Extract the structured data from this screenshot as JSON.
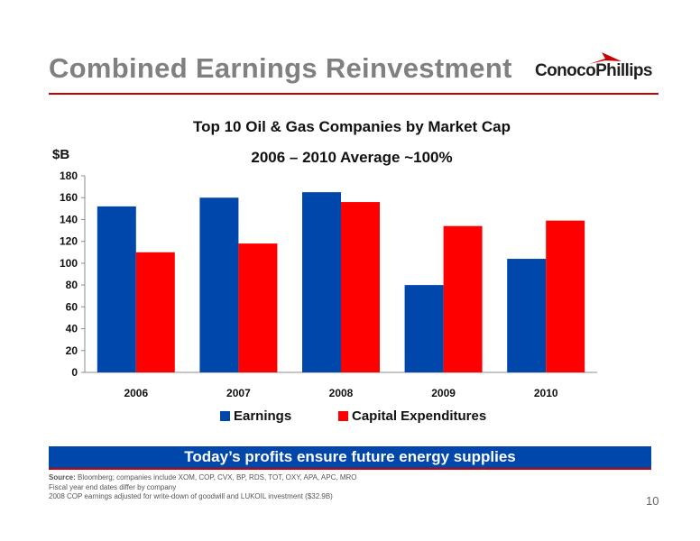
{
  "header": {
    "title": "Combined Earnings Reinvestment",
    "logo_text": "ConocoPhillips"
  },
  "chart_data": {
    "type": "bar",
    "title": "Top 10 Oil & Gas Companies by Market Cap",
    "subtitle": "2006 – 2010 Average ~100%",
    "ylabel": "$B",
    "categories": [
      "2006",
      "2007",
      "2008",
      "2009",
      "2010"
    ],
    "series": [
      {
        "name": "Earnings",
        "color": "#0047ab",
        "values": [
          152,
          160,
          165,
          80,
          104
        ]
      },
      {
        "name": "Capital Expenditures",
        "color": "#ff0000",
        "values": [
          110,
          118,
          156,
          134,
          139
        ]
      }
    ],
    "ylim": [
      0,
      180
    ],
    "yticks": [
      "0",
      "20",
      "40",
      "60",
      "80",
      "100",
      "120",
      "140",
      "160",
      "180"
    ],
    "grid": false,
    "legend": "bottom"
  },
  "banner": "Today’s profits ensure future energy supplies",
  "notes": {
    "source_label": "Source:",
    "source_text": "Bloomberg; companies include XOM, COP, CVX, BP, RDS, TOT, OXY, APA, APC, MRO",
    "line2": "Fiscal year end dates differ by company",
    "line3": "2008 COP earnings adjusted for write-down of goodwill and LUKOIL investment ($32.9B)"
  },
  "page_number": "10",
  "colors": {
    "accent_red": "#cc0000",
    "banner_blue": "#0047ab",
    "title_gray": "#808080"
  }
}
